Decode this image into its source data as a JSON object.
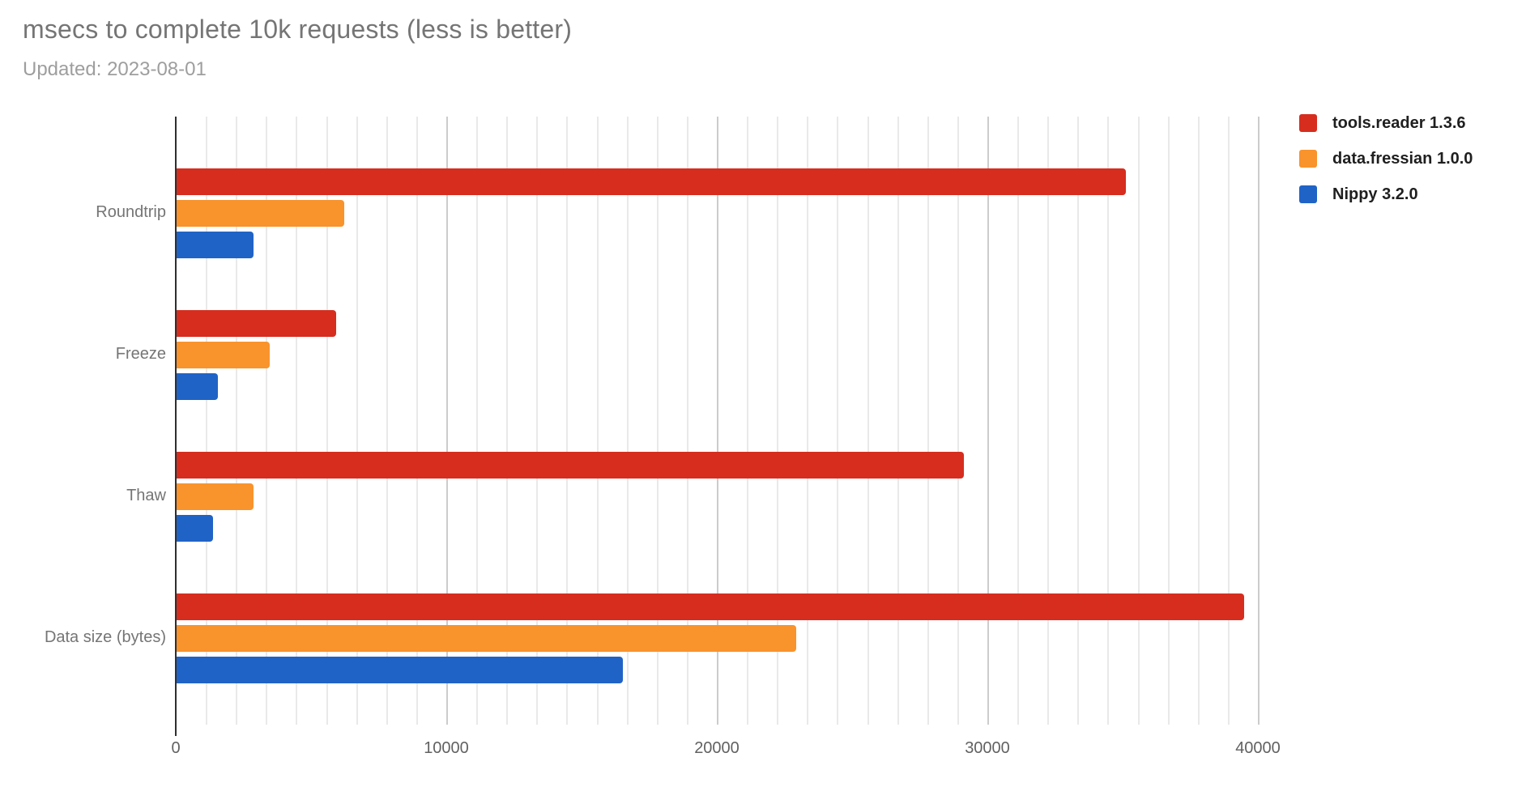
{
  "header": {
    "title": "msecs to complete 10k requests (less is better)",
    "subtitle": "Updated: 2023-08-01"
  },
  "chart_data": {
    "type": "bar",
    "orientation": "horizontal",
    "title": "msecs to complete 10k requests (less is better)",
    "subtitle": "Updated: 2023-08-01",
    "categories": [
      "Roundtrip",
      "Freeze",
      "Thaw",
      "Data size (bytes)"
    ],
    "series": [
      {
        "name": "tools.reader 1.3.6",
        "color": "#d62d1f",
        "values": [
          35100,
          5900,
          29100,
          39450
        ]
      },
      {
        "name": "data.fressian 1.0.0",
        "color": "#f9932c",
        "values": [
          6200,
          3450,
          2850,
          22900
        ]
      },
      {
        "name": "Nippy 3.2.0",
        "color": "#2063c6",
        "values": [
          2850,
          1530,
          1350,
          16500
        ]
      }
    ],
    "xlabel": "",
    "ylabel": "",
    "xlim": [
      0,
      40000
    ],
    "x_ticks": [
      0,
      10000,
      20000,
      30000,
      40000
    ],
    "x_tick_labels": [
      "0",
      "10000",
      "20000",
      "30000",
      "40000"
    ],
    "grid": "vertical, light minor gridlines with darker major gridlines every 10000",
    "legend_position": "top-right"
  },
  "colors": {
    "title_text": "#757575",
    "subtitle_text": "#9e9e9e",
    "category_text": "#757575",
    "tick_text": "#616161",
    "legend_text": "#1f1f1f",
    "minor_gridline": "#e9e9e9",
    "major_gridline": "#cccccc",
    "axis_line": "#2f2f2f",
    "background": "#ffffff"
  }
}
